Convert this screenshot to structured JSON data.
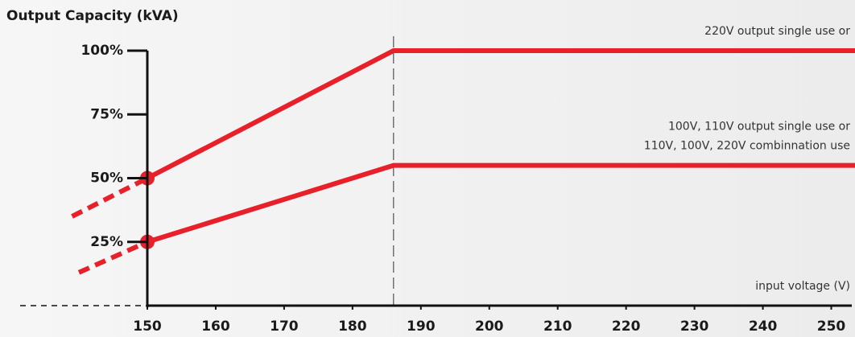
{
  "chart_data": {
    "type": "line",
    "title": "Output Capacity (kVA)",
    "x_label": "input voltage (V)",
    "xlim": [
      150,
      253
    ],
    "xticks": [
      150,
      160,
      170,
      180,
      190,
      200,
      210,
      220,
      230,
      240,
      250
    ],
    "ylim": [
      0,
      100
    ],
    "yticks": [
      {
        "value": 25,
        "label": "25%"
      },
      {
        "value": 50,
        "label": "50%"
      },
      {
        "value": 75,
        "label": "75%"
      },
      {
        "value": 100,
        "label": "100%"
      }
    ],
    "vline": 186,
    "series": [
      {
        "color": "#e8202a",
        "style": "solid",
        "marker": true,
        "x": [
          150,
          186,
          258
        ],
        "values": [
          50,
          100,
          100
        ],
        "label": [
          "220V output single use or"
        ]
      },
      {
        "color": "#e8202a",
        "style": "solid",
        "marker": true,
        "x": [
          150,
          186,
          258
        ],
        "values": [
          25,
          55,
          55
        ],
        "label": [
          "100V, 110V output single use or",
          "110V, 100V, 220V combinnation use"
        ]
      },
      {
        "color": "#e8202a",
        "style": "dashed",
        "marker": false,
        "x": [
          139,
          150
        ],
        "values": [
          35,
          50
        ]
      },
      {
        "color": "#e8202a",
        "style": "dashed",
        "marker": false,
        "x": [
          140,
          150
        ],
        "values": [
          13,
          25
        ]
      }
    ]
  }
}
